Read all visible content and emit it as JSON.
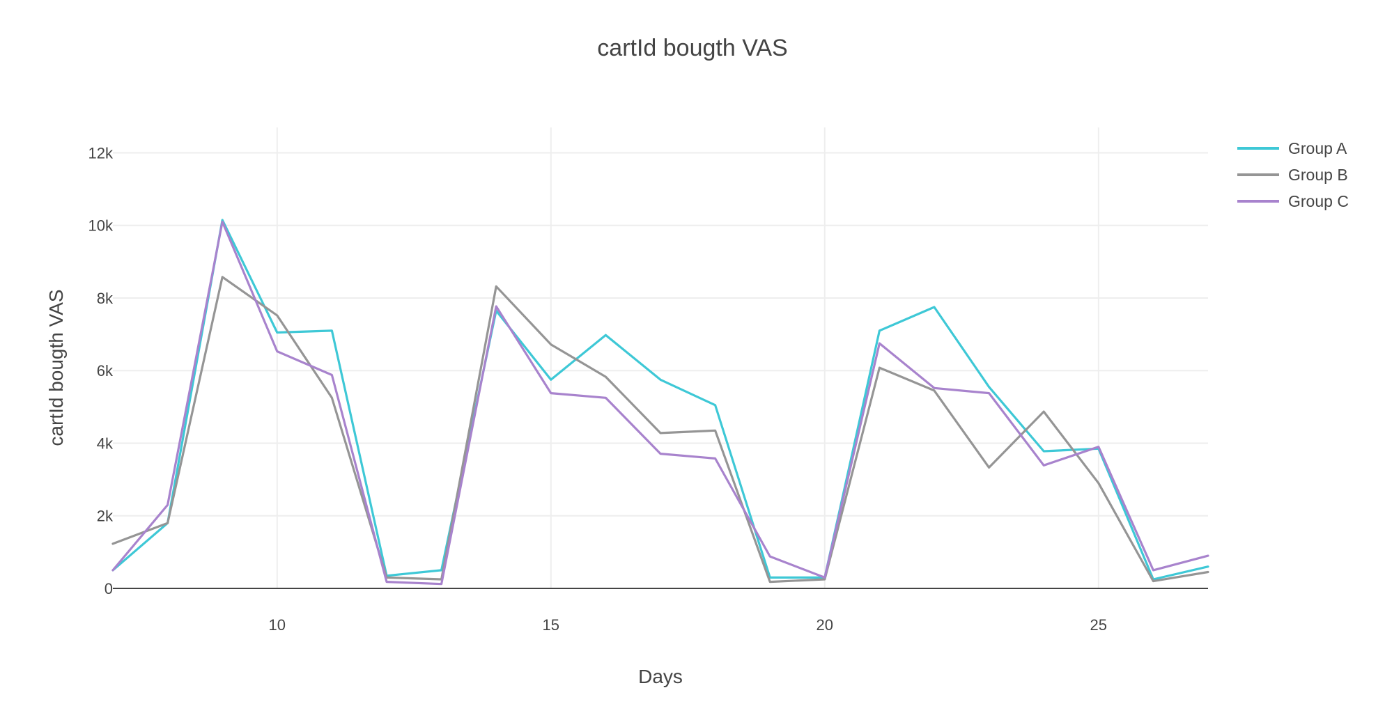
{
  "chart_data": {
    "type": "line",
    "title": "cartId bougth VAS",
    "xlabel": "Days",
    "ylabel": "cartId bougth VAS",
    "xlim": [
      7,
      27
    ],
    "ylim": [
      0,
      12700
    ],
    "x_ticks": [
      10,
      15,
      20,
      25
    ],
    "x_tick_labels": [
      "10",
      "15",
      "20",
      "25"
    ],
    "y_ticks": [
      0,
      2000,
      4000,
      6000,
      8000,
      10000,
      12000
    ],
    "y_tick_labels": [
      "0",
      "2k",
      "4k",
      "6k",
      "8k",
      "10k",
      "12k"
    ],
    "grid": true,
    "legend_position": "top-right",
    "x": [
      7,
      8,
      9,
      10,
      11,
      12,
      13,
      14,
      15,
      16,
      17,
      18,
      19,
      20,
      21,
      22,
      23,
      24,
      25,
      26,
      27
    ],
    "series": [
      {
        "name": "Group A",
        "color": "#3ec8d6",
        "values": [
          500,
          1800,
          10150,
          7050,
          7100,
          350,
          500,
          7650,
          5750,
          6980,
          5750,
          5050,
          300,
          300,
          7100,
          7750,
          5550,
          3780,
          3850,
          250,
          600
        ]
      },
      {
        "name": "Group B",
        "color": "#959595",
        "values": [
          1230,
          1800,
          8580,
          7520,
          5250,
          300,
          250,
          8320,
          6720,
          5830,
          4280,
          4350,
          180,
          250,
          6080,
          5450,
          3330,
          4870,
          2900,
          200,
          450
        ]
      },
      {
        "name": "Group C",
        "color": "#a883cd",
        "values": [
          500,
          2300,
          10100,
          6530,
          5880,
          180,
          120,
          7770,
          5380,
          5250,
          3710,
          3580,
          880,
          300,
          6750,
          5520,
          5380,
          3390,
          3900,
          500,
          900
        ]
      }
    ]
  }
}
